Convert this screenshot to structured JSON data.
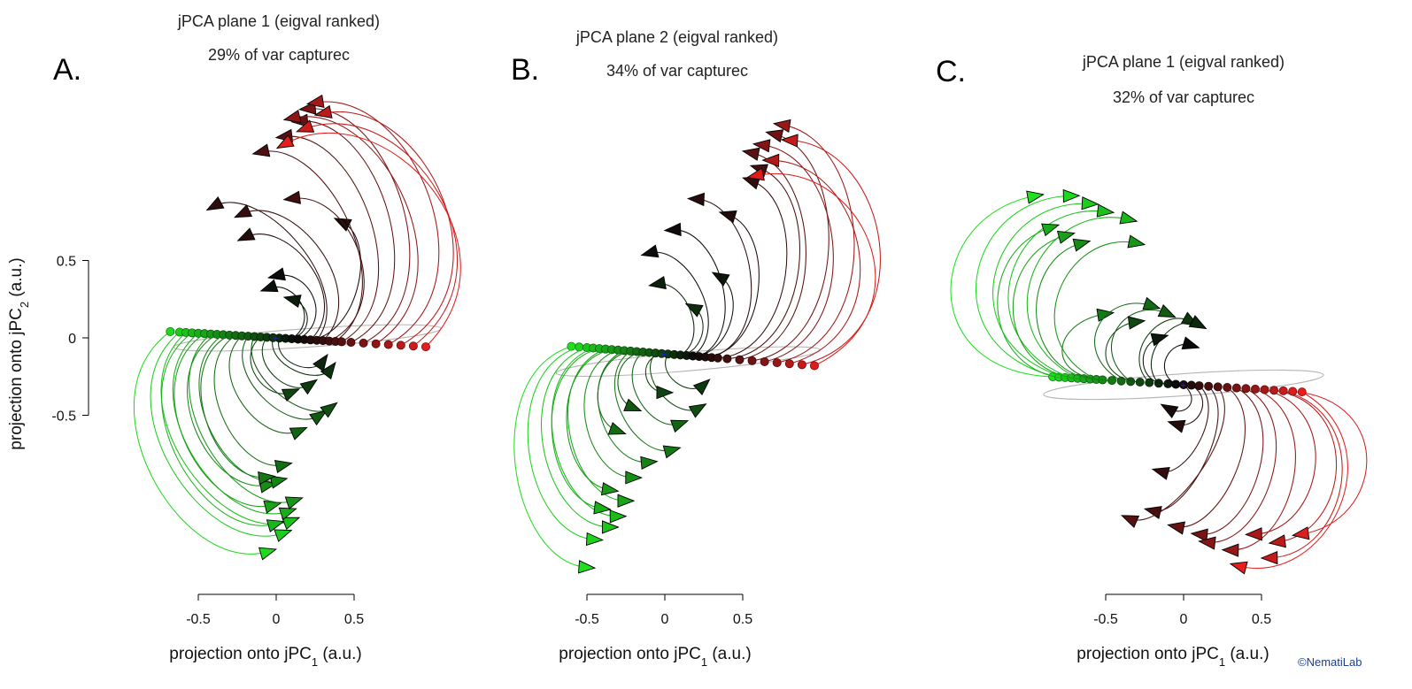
{
  "chart_data": [
    {
      "type": "line",
      "letter": "A.",
      "title": "jPCA plane 1 (eigval ranked)",
      "subtitle": "29% of var capturec",
      "xlabel": "projection onto jPC",
      "xlabel_sub": "1",
      "ylabel": "projection onto jPC",
      "ylabel_sub": "2",
      "label_tail": " (a.u.)",
      "xticks": [
        -0.5,
        0,
        0.5
      ],
      "xtick_labels": [
        "-0.5",
        "0",
        "0.5"
      ],
      "yticks": [
        0.5,
        0,
        -0.5
      ],
      "ytick_labels": [
        "0.5",
        "0",
        "-0.5"
      ],
      "yaxis_shown": true,
      "xlim": [
        -0.85,
        1.4
      ],
      "ylim": [
        -1.4,
        1.55
      ],
      "rotation": "counter-clockwise",
      "ellipse": {
        "cx": 0.2,
        "cy": 0.0,
        "rx": 0.86,
        "ry": 0.06,
        "angle_deg": -4
      },
      "start_points": {
        "x_min": -0.72,
        "x_max": 0.98,
        "y_slope": -0.06
      },
      "trajectories": [
        {
          "start_x": -0.68,
          "end": [
            -0.05,
            -1.38
          ],
          "bulge": 0.65
        },
        {
          "start_x": -0.62,
          "end": [
            0.05,
            -1.26
          ],
          "bulge": 0.6
        },
        {
          "start_x": -0.58,
          "end": [
            0.1,
            -1.18
          ],
          "bulge": 0.56
        },
        {
          "start_x": -0.54,
          "end": [
            0.0,
            -1.2
          ],
          "bulge": 0.55
        },
        {
          "start_x": -0.5,
          "end": [
            0.08,
            -1.12
          ],
          "bulge": 0.52
        },
        {
          "start_x": -0.46,
          "end": [
            -0.02,
            -1.08
          ],
          "bulge": 0.5
        },
        {
          "start_x": -0.42,
          "end": [
            0.12,
            -1.05
          ],
          "bulge": 0.46
        },
        {
          "start_x": -0.38,
          "end": [
            -0.05,
            -0.95
          ],
          "bulge": 0.44
        },
        {
          "start_x": -0.34,
          "end": [
            0.02,
            -0.92
          ],
          "bulge": 0.4
        },
        {
          "start_x": -0.3,
          "end": [
            -0.06,
            -0.9
          ],
          "bulge": 0.38
        },
        {
          "start_x": -0.26,
          "end": [
            0.05,
            -0.82
          ],
          "bulge": 0.35
        },
        {
          "start_x": -0.22,
          "end": [
            0.15,
            -0.6
          ],
          "bulge": 0.3
        },
        {
          "start_x": -0.18,
          "end": [
            0.28,
            -0.5
          ],
          "bulge": 0.26
        },
        {
          "start_x": -0.14,
          "end": [
            0.35,
            -0.45
          ],
          "bulge": 0.22
        },
        {
          "start_x": -0.1,
          "end": [
            0.1,
            -0.35
          ],
          "bulge": 0.2
        },
        {
          "start_x": -0.06,
          "end": [
            0.22,
            -0.3
          ],
          "bulge": 0.18
        },
        {
          "start_x": -0.02,
          "end": [
            0.35,
            -0.2
          ],
          "bulge": 0.16
        },
        {
          "start_x": 0.02,
          "end": [
            0.3,
            -0.15
          ],
          "bulge": 0.14
        },
        {
          "start_x": 0.06,
          "end": [
            0.1,
            0.25
          ],
          "bulge": 0.16
        },
        {
          "start_x": 0.1,
          "end": [
            -0.05,
            0.32
          ],
          "bulge": 0.2
        },
        {
          "start_x": 0.14,
          "end": [
            0.0,
            0.4
          ],
          "bulge": 0.24
        },
        {
          "start_x": 0.18,
          "end": [
            0.42,
            0.75
          ],
          "bulge": 0.3
        },
        {
          "start_x": 0.22,
          "end": [
            -0.2,
            0.65
          ],
          "bulge": 0.34
        },
        {
          "start_x": 0.26,
          "end": [
            -0.4,
            0.85
          ],
          "bulge": 0.38
        },
        {
          "start_x": 0.3,
          "end": [
            -0.22,
            0.8
          ],
          "bulge": 0.4
        },
        {
          "start_x": 0.34,
          "end": [
            0.1,
            0.9
          ],
          "bulge": 0.44
        },
        {
          "start_x": 0.38,
          "end": [
            -0.1,
            1.2
          ],
          "bulge": 0.48
        },
        {
          "start_x": 0.42,
          "end": [
            0.05,
            1.3
          ],
          "bulge": 0.52
        },
        {
          "start_x": 0.48,
          "end": [
            0.15,
            1.4
          ],
          "bulge": 0.56
        },
        {
          "start_x": 0.56,
          "end": [
            0.2,
            1.48
          ],
          "bulge": 0.6
        },
        {
          "start_x": 0.64,
          "end": [
            0.1,
            1.42
          ],
          "bulge": 0.66
        },
        {
          "start_x": 0.72,
          "end": [
            0.25,
            1.52
          ],
          "bulge": 0.7
        },
        {
          "start_x": 0.8,
          "end": [
            0.3,
            1.45
          ],
          "bulge": 0.74
        },
        {
          "start_x": 0.88,
          "end": [
            0.18,
            1.35
          ],
          "bulge": 0.78
        },
        {
          "start_x": 0.96,
          "end": [
            0.05,
            1.25
          ],
          "bulge": 0.82
        }
      ]
    },
    {
      "type": "line",
      "letter": "B.",
      "title": "jPCA plane 2 (eigval ranked)",
      "subtitle": "34% of var capturec",
      "xlabel": "projection onto jPC",
      "xlabel_sub": "1",
      "ylabel": "",
      "ylabel_sub": "",
      "label_tail": " (a.u.)",
      "xticks": [
        -0.5,
        0,
        0.5
      ],
      "xtick_labels": [
        "-0.5",
        "0",
        "0.5"
      ],
      "yticks": [],
      "ytick_labels": [],
      "yaxis_shown": false,
      "xlim": [
        -0.95,
        1.6
      ],
      "ylim": [
        -1.4,
        1.55
      ],
      "rotation": "counter-clockwise",
      "ellipse": {
        "cx": 0.15,
        "cy": -0.05,
        "rx": 0.85,
        "ry": 0.06,
        "angle_deg": -5
      },
      "start_points": {
        "x_min": -0.62,
        "x_max": 1.0,
        "y_slope": -0.08
      },
      "trajectories": [
        {
          "start_x": -0.6,
          "end": [
            -0.5,
            -1.38
          ],
          "bulge": 0.55
        },
        {
          "start_x": -0.55,
          "end": [
            -0.45,
            -1.2
          ],
          "bulge": 0.5
        },
        {
          "start_x": -0.5,
          "end": [
            -0.35,
            -1.12
          ],
          "bulge": 0.48
        },
        {
          "start_x": -0.46,
          "end": [
            -0.3,
            -1.05
          ],
          "bulge": 0.45
        },
        {
          "start_x": -0.42,
          "end": [
            -0.4,
            -1.0
          ],
          "bulge": 0.42
        },
        {
          "start_x": -0.38,
          "end": [
            -0.25,
            -0.95
          ],
          "bulge": 0.4
        },
        {
          "start_x": -0.34,
          "end": [
            -0.35,
            -0.88
          ],
          "bulge": 0.38
        },
        {
          "start_x": -0.3,
          "end": [
            -0.2,
            -0.8
          ],
          "bulge": 0.35
        },
        {
          "start_x": -0.26,
          "end": [
            -0.1,
            -0.7
          ],
          "bulge": 0.32
        },
        {
          "start_x": -0.22,
          "end": [
            0.05,
            -0.62
          ],
          "bulge": 0.28
        },
        {
          "start_x": -0.18,
          "end": [
            -0.3,
            -0.5
          ],
          "bulge": 0.25
        },
        {
          "start_x": -0.14,
          "end": [
            0.1,
            -0.45
          ],
          "bulge": 0.22
        },
        {
          "start_x": -0.1,
          "end": [
            -0.2,
            -0.35
          ],
          "bulge": 0.2
        },
        {
          "start_x": -0.06,
          "end": [
            0.22,
            -0.35
          ],
          "bulge": 0.18
        },
        {
          "start_x": -0.02,
          "end": [
            0.0,
            -0.25
          ],
          "bulge": 0.15
        },
        {
          "start_x": 0.02,
          "end": [
            0.25,
            -0.2
          ],
          "bulge": 0.14
        },
        {
          "start_x": 0.06,
          "end": [
            0.18,
            0.3
          ],
          "bulge": 0.16
        },
        {
          "start_x": 0.1,
          "end": [
            -0.05,
            0.45
          ],
          "bulge": 0.2
        },
        {
          "start_x": 0.14,
          "end": [
            0.35,
            0.5
          ],
          "bulge": 0.24
        },
        {
          "start_x": 0.18,
          "end": [
            -0.1,
            0.65
          ],
          "bulge": 0.28
        },
        {
          "start_x": 0.22,
          "end": [
            0.05,
            0.8
          ],
          "bulge": 0.32
        },
        {
          "start_x": 0.26,
          "end": [
            0.4,
            0.9
          ],
          "bulge": 0.36
        },
        {
          "start_x": 0.3,
          "end": [
            0.2,
            1.0
          ],
          "bulge": 0.4
        },
        {
          "start_x": 0.34,
          "end": [
            0.55,
            1.12
          ],
          "bulge": 0.44
        },
        {
          "start_x": 0.4,
          "end": [
            0.6,
            1.2
          ],
          "bulge": 0.48
        },
        {
          "start_x": 0.48,
          "end": [
            0.55,
            1.3
          ],
          "bulge": 0.52
        },
        {
          "start_x": 0.56,
          "end": [
            0.7,
            1.42
          ],
          "bulge": 0.56
        },
        {
          "start_x": 0.64,
          "end": [
            0.62,
            1.35
          ],
          "bulge": 0.6
        },
        {
          "start_x": 0.72,
          "end": [
            0.75,
            1.48
          ],
          "bulge": 0.64
        },
        {
          "start_x": 0.8,
          "end": [
            0.68,
            1.25
          ],
          "bulge": 0.68
        },
        {
          "start_x": 0.88,
          "end": [
            0.8,
            1.38
          ],
          "bulge": 0.72
        },
        {
          "start_x": 0.96,
          "end": [
            0.58,
            1.15
          ],
          "bulge": 0.76
        }
      ]
    },
    {
      "type": "line",
      "letter": "C.",
      "title": "jPCA plane 1 (eigval ranked)",
      "subtitle": "32% of var capturec",
      "xlabel": "projection onto jPC",
      "xlabel_sub": "1",
      "ylabel": "",
      "ylabel_sub": "",
      "label_tail": " (a.u.)",
      "xticks": [
        -0.5,
        0,
        0.5
      ],
      "xtick_labels": [
        "-0.5",
        "0",
        "0.5"
      ],
      "yticks": [],
      "ytick_labels": [],
      "yaxis_shown": false,
      "xlim": [
        -1.55,
        1.25
      ],
      "ylim": [
        -1.1,
        1.15
      ],
      "rotation": "clockwise",
      "ellipse": {
        "cx": 0.0,
        "cy": 0.0,
        "rx": 0.9,
        "ry": 0.07,
        "angle_deg": -4
      },
      "start_points": {
        "x_min": -0.85,
        "x_max": 0.75,
        "y_slope": -0.06
      },
      "trajectories": [
        {
          "start_x": -0.84,
          "end": [
            -0.95,
            1.2
          ],
          "bulge": 0.8
        },
        {
          "start_x": -0.8,
          "end": [
            -0.72,
            1.2
          ],
          "bulge": 0.76
        },
        {
          "start_x": -0.76,
          "end": [
            -0.6,
            1.15
          ],
          "bulge": 0.72
        },
        {
          "start_x": -0.72,
          "end": [
            -0.5,
            1.1
          ],
          "bulge": 0.68
        },
        {
          "start_x": -0.68,
          "end": [
            -0.35,
            1.05
          ],
          "bulge": 0.64
        },
        {
          "start_x": -0.64,
          "end": [
            -0.85,
            1.0
          ],
          "bulge": 0.6
        },
        {
          "start_x": -0.6,
          "end": [
            -0.75,
            0.95
          ],
          "bulge": 0.56
        },
        {
          "start_x": -0.56,
          "end": [
            -0.3,
            0.9
          ],
          "bulge": 0.52
        },
        {
          "start_x": -0.52,
          "end": [
            -0.65,
            0.9
          ],
          "bulge": 0.48
        },
        {
          "start_x": -0.46,
          "end": [
            -0.5,
            0.45
          ],
          "bulge": 0.4
        },
        {
          "start_x": -0.4,
          "end": [
            -0.2,
            0.5
          ],
          "bulge": 0.36
        },
        {
          "start_x": -0.34,
          "end": [
            -0.1,
            0.45
          ],
          "bulge": 0.32
        },
        {
          "start_x": -0.28,
          "end": [
            -0.3,
            0.4
          ],
          "bulge": 0.28
        },
        {
          "start_x": -0.22,
          "end": [
            0.05,
            0.4
          ],
          "bulge": 0.24
        },
        {
          "start_x": -0.16,
          "end": [
            0.1,
            0.38
          ],
          "bulge": 0.2
        },
        {
          "start_x": -0.1,
          "end": [
            -0.15,
            0.3
          ],
          "bulge": 0.18
        },
        {
          "start_x": -0.05,
          "end": [
            0.05,
            0.25
          ],
          "bulge": 0.16
        },
        {
          "start_x": 0.0,
          "end": [
            -0.1,
            -0.15
          ],
          "bulge": 0.14
        },
        {
          "start_x": 0.05,
          "end": [
            -0.05,
            -0.25
          ],
          "bulge": 0.16
        },
        {
          "start_x": 0.1,
          "end": [
            -0.15,
            -0.55
          ],
          "bulge": 0.2
        },
        {
          "start_x": 0.16,
          "end": [
            -0.2,
            -0.8
          ],
          "bulge": 0.24
        },
        {
          "start_x": 0.22,
          "end": [
            -0.35,
            -0.85
          ],
          "bulge": 0.28
        },
        {
          "start_x": 0.28,
          "end": [
            -0.05,
            -0.9
          ],
          "bulge": 0.32
        },
        {
          "start_x": 0.34,
          "end": [
            0.1,
            -0.95
          ],
          "bulge": 0.36
        },
        {
          "start_x": 0.4,
          "end": [
            0.15,
            -1.0
          ],
          "bulge": 0.4
        },
        {
          "start_x": 0.46,
          "end": [
            0.3,
            -1.05
          ],
          "bulge": 0.44
        },
        {
          "start_x": 0.52,
          "end": [
            0.45,
            -0.95
          ],
          "bulge": 0.48
        },
        {
          "start_x": 0.58,
          "end": [
            0.6,
            -1.0
          ],
          "bulge": 0.52
        },
        {
          "start_x": 0.64,
          "end": [
            0.55,
            -1.1
          ],
          "bulge": 0.56
        },
        {
          "start_x": 0.7,
          "end": [
            0.75,
            -0.95
          ],
          "bulge": 0.6
        },
        {
          "start_x": 0.76,
          "end": [
            0.35,
            -1.15
          ],
          "bulge": 0.64
        }
      ]
    }
  ],
  "credit": "©NematiLab",
  "colors": {
    "negative_end": "#1ee61e",
    "center": "#0a0a0a",
    "positive_end": "#e81e1e",
    "ellipse": "#b4b4b4",
    "origin_marker": "#2020c8",
    "credit_text": "#1a3f8f"
  }
}
